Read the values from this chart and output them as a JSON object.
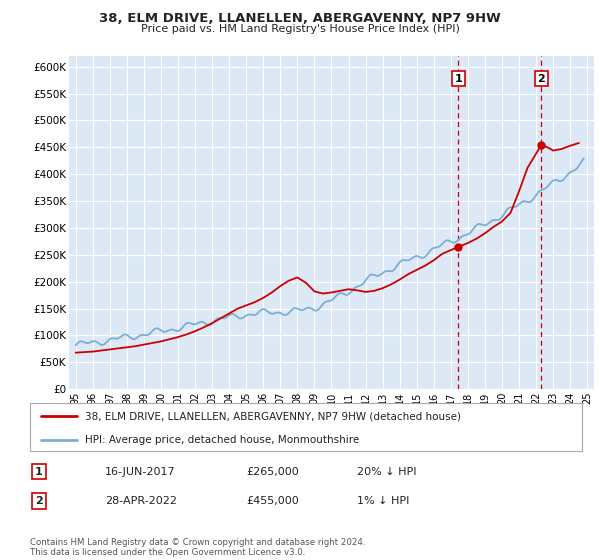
{
  "title": "38, ELM DRIVE, LLANELLEN, ABERGAVENNY, NP7 9HW",
  "subtitle": "Price paid vs. HM Land Registry's House Price Index (HPI)",
  "hpi_color": "#7bafd4",
  "price_color": "#cc0000",
  "vline_color": "#cc0000",
  "background_color": "#ffffff",
  "plot_bg_color": "#dce8f5",
  "grid_color": "#ffffff",
  "ylim": [
    0,
    620000
  ],
  "yticks": [
    0,
    50000,
    100000,
    150000,
    200000,
    250000,
    300000,
    350000,
    400000,
    450000,
    500000,
    550000,
    600000
  ],
  "sale1_date_x": 2017.45,
  "sale1_price": 265000,
  "sale2_date_x": 2022.32,
  "sale2_price": 455000,
  "legend_line1": "38, ELM DRIVE, LLANELLEN, ABERGAVENNY, NP7 9HW (detached house)",
  "legend_line2": "HPI: Average price, detached house, Monmouthshire",
  "table_row1": [
    "1",
    "16-JUN-2017",
    "£265,000",
    "20% ↓ HPI"
  ],
  "table_row2": [
    "2",
    "28-APR-2022",
    "£455,000",
    "1% ↓ HPI"
  ],
  "footnote": "Contains HM Land Registry data © Crown copyright and database right 2024.\nThis data is licensed under the Open Government Licence v3.0.",
  "xlim_start": 1994.6,
  "xlim_end": 2025.4
}
